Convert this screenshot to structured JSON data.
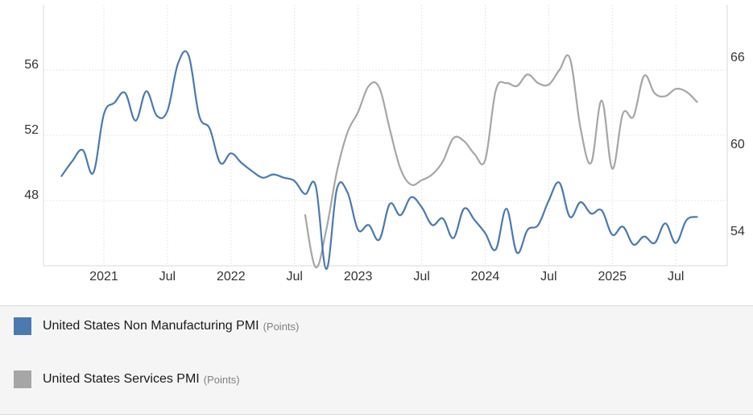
{
  "chart_data": {
    "type": "line",
    "title": "",
    "x_ticks": [
      "2021",
      "Jul",
      "2022",
      "Jul",
      "2023",
      "Jul",
      "2024",
      "Jul",
      "2025",
      "Jul"
    ],
    "x_range": [
      "2020-08",
      "2025-12"
    ],
    "y_left": {
      "ticks": [
        "48",
        "52",
        "56"
      ],
      "range": [
        44,
        60
      ]
    },
    "y_right": {
      "ticks": [
        "54",
        "60",
        "66"
      ],
      "range": [
        52,
        70
      ]
    },
    "grid": true,
    "legend_position": "bottom",
    "series": [
      {
        "name": "United States Non Manufacturing PMI",
        "unit": "(Points)",
        "axis": "left",
        "color": "#4a7ab0",
        "points": [
          [
            "2020-09",
            49.5
          ],
          [
            "2020-10",
            50.4
          ],
          [
            "2020-11",
            51.1
          ],
          [
            "2020-12",
            49.7
          ],
          [
            "2021-01",
            53.3
          ],
          [
            "2021-02",
            54.0
          ],
          [
            "2021-03",
            54.6
          ],
          [
            "2021-04",
            52.9
          ],
          [
            "2021-05",
            54.7
          ],
          [
            "2021-06",
            53.2
          ],
          [
            "2021-07",
            53.5
          ],
          [
            "2021-08",
            56.4
          ],
          [
            "2021-09",
            56.9
          ],
          [
            "2021-10",
            53.2
          ],
          [
            "2021-11",
            52.4
          ],
          [
            "2021-12",
            50.3
          ],
          [
            "2022-01",
            50.9
          ],
          [
            "2022-02",
            50.3
          ],
          [
            "2022-03",
            49.8
          ],
          [
            "2022-04",
            49.4
          ],
          [
            "2022-05",
            49.6
          ],
          [
            "2022-06",
            49.4
          ],
          [
            "2022-07",
            49.2
          ],
          [
            "2022-08",
            48.4
          ],
          [
            "2022-09",
            48.9
          ],
          [
            "2022-10",
            43.8
          ],
          [
            "2022-11",
            48.7
          ],
          [
            "2022-12",
            48.5
          ],
          [
            "2023-01",
            46.2
          ],
          [
            "2023-02",
            46.5
          ],
          [
            "2023-03",
            45.6
          ],
          [
            "2023-04",
            47.8
          ],
          [
            "2023-05",
            47.1
          ],
          [
            "2023-06",
            48.2
          ],
          [
            "2023-07",
            47.6
          ],
          [
            "2023-08",
            46.5
          ],
          [
            "2023-09",
            46.9
          ],
          [
            "2023-10",
            45.7
          ],
          [
            "2023-11",
            47.5
          ],
          [
            "2023-12",
            46.8
          ],
          [
            "2024-01",
            46.0
          ],
          [
            "2024-02",
            45.0
          ],
          [
            "2024-03",
            47.5
          ],
          [
            "2024-04",
            44.8
          ],
          [
            "2024-05",
            46.2
          ],
          [
            "2024-06",
            46.5
          ],
          [
            "2024-07",
            48.0
          ],
          [
            "2024-08",
            49.1
          ],
          [
            "2024-09",
            47.0
          ],
          [
            "2024-10",
            47.9
          ],
          [
            "2024-11",
            47.2
          ],
          [
            "2024-12",
            47.4
          ],
          [
            "2025-01",
            45.9
          ],
          [
            "2025-02",
            46.4
          ],
          [
            "2025-03",
            45.3
          ],
          [
            "2025-04",
            45.8
          ],
          [
            "2025-05",
            45.4
          ],
          [
            "2025-06",
            46.6
          ],
          [
            "2025-07",
            45.4
          ],
          [
            "2025-08",
            46.8
          ],
          [
            "2025-09",
            47.0
          ]
        ]
      },
      {
        "name": "United States Services PMI",
        "unit": "(Points)",
        "axis": "right",
        "color": "#a6a6a6",
        "points": [
          [
            "2022-08",
            55.5
          ],
          [
            "2022-09",
            51.9
          ],
          [
            "2022-10",
            54.5
          ],
          [
            "2022-11",
            58.5
          ],
          [
            "2022-12",
            61.2
          ],
          [
            "2023-01",
            62.6
          ],
          [
            "2023-02",
            64.4
          ],
          [
            "2023-03",
            64.3
          ],
          [
            "2023-04",
            61.4
          ],
          [
            "2023-05",
            58.7
          ],
          [
            "2023-06",
            57.6
          ],
          [
            "2023-07",
            57.9
          ],
          [
            "2023-08",
            58.3
          ],
          [
            "2023-09",
            59.2
          ],
          [
            "2023-10",
            60.8
          ],
          [
            "2023-11",
            60.6
          ],
          [
            "2023-12",
            59.7
          ],
          [
            "2024-01",
            59.3
          ],
          [
            "2024-02",
            64.1
          ],
          [
            "2024-03",
            64.6
          ],
          [
            "2024-04",
            64.4
          ],
          [
            "2024-05",
            65.2
          ],
          [
            "2024-06",
            64.6
          ],
          [
            "2024-07",
            64.5
          ],
          [
            "2024-08",
            65.5
          ],
          [
            "2024-09",
            66.3
          ],
          [
            "2024-10",
            61.5
          ],
          [
            "2024-11",
            59.1
          ],
          [
            "2024-12",
            63.4
          ],
          [
            "2025-01",
            58.7
          ],
          [
            "2025-02",
            62.5
          ],
          [
            "2025-03",
            62.3
          ],
          [
            "2025-04",
            65.1
          ],
          [
            "2025-05",
            63.9
          ],
          [
            "2025-06",
            63.7
          ],
          [
            "2025-07",
            64.2
          ],
          [
            "2025-08",
            64.0
          ],
          [
            "2025-09",
            63.3
          ]
        ]
      }
    ]
  }
}
